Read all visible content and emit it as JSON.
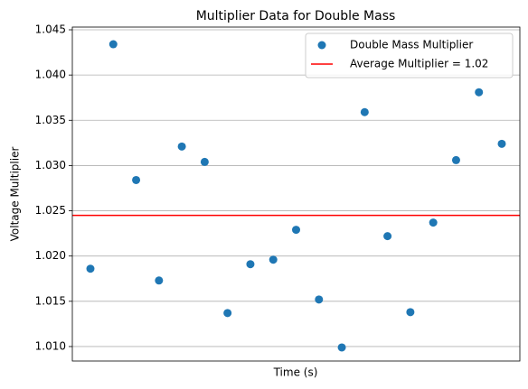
{
  "chart_data": {
    "type": "scatter",
    "title": "Multiplier Data for Double Mass",
    "xlabel": "Time (s)",
    "ylabel": "Voltage Multiplier",
    "series": [
      {
        "name": "Double Mass Multiplier",
        "color": "#1f77b4",
        "values": [
          1.0186,
          1.0434,
          1.0284,
          1.0173,
          1.0321,
          1.0304,
          1.0137,
          1.0191,
          1.0196,
          1.0229,
          1.0152,
          1.0099,
          1.0359,
          1.0222,
          1.0138,
          1.0237,
          1.0306,
          1.0381,
          1.0324
        ]
      }
    ],
    "average": {
      "name": "Average Multiplier = 1.02",
      "color": "#ff0000",
      "value": 1.0245
    },
    "ylim": [
      1.0084,
      1.0453
    ],
    "yticks": [
      {
        "value": 1.01,
        "label": "1.010"
      },
      1.015,
      {
        "value": 1.02,
        "label": "1.020"
      },
      1.025,
      {
        "value": 1.03,
        "label": "1.030"
      },
      1.035,
      {
        "value": 1.04,
        "label": "1.040"
      },
      1.045
    ],
    "grid": true,
    "legend": "upper right"
  }
}
